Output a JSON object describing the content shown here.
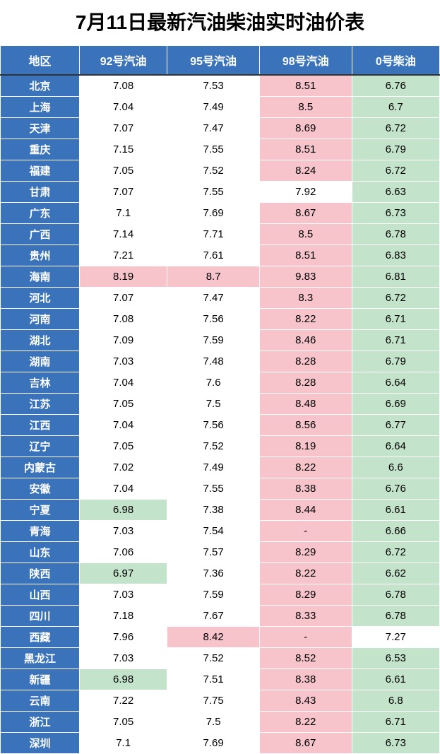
{
  "title": "7月11日最新汽油柴油实时油价表",
  "colors": {
    "header_bg": "#3a73b9",
    "region_bg": "#3a73b9",
    "white": "#ffffff",
    "pink": "#f7c4cb",
    "green": "#c3e4cb"
  },
  "columns": [
    {
      "key": "region",
      "label": "地区"
    },
    {
      "key": "g92",
      "label": "92号汽油"
    },
    {
      "key": "g95",
      "label": "95号汽油"
    },
    {
      "key": "g98",
      "label": "98号汽油"
    },
    {
      "key": "d0",
      "label": "0号柴油"
    }
  ],
  "rows": [
    {
      "region": "北京",
      "g92": {
        "v": "7.08",
        "bg": "white"
      },
      "g95": {
        "v": "7.53",
        "bg": "white"
      },
      "g98": {
        "v": "8.51",
        "bg": "pink"
      },
      "d0": {
        "v": "6.76",
        "bg": "green"
      }
    },
    {
      "region": "上海",
      "g92": {
        "v": "7.04",
        "bg": "white"
      },
      "g95": {
        "v": "7.49",
        "bg": "white"
      },
      "g98": {
        "v": "8.5",
        "bg": "pink"
      },
      "d0": {
        "v": "6.7",
        "bg": "green"
      }
    },
    {
      "region": "天津",
      "g92": {
        "v": "7.07",
        "bg": "white"
      },
      "g95": {
        "v": "7.47",
        "bg": "white"
      },
      "g98": {
        "v": "8.69",
        "bg": "pink"
      },
      "d0": {
        "v": "6.72",
        "bg": "green"
      }
    },
    {
      "region": "重庆",
      "g92": {
        "v": "7.15",
        "bg": "white"
      },
      "g95": {
        "v": "7.55",
        "bg": "white"
      },
      "g98": {
        "v": "8.51",
        "bg": "pink"
      },
      "d0": {
        "v": "6.79",
        "bg": "green"
      }
    },
    {
      "region": "福建",
      "g92": {
        "v": "7.05",
        "bg": "white"
      },
      "g95": {
        "v": "7.52",
        "bg": "white"
      },
      "g98": {
        "v": "8.24",
        "bg": "pink"
      },
      "d0": {
        "v": "6.72",
        "bg": "green"
      }
    },
    {
      "region": "甘肃",
      "g92": {
        "v": "7.07",
        "bg": "white"
      },
      "g95": {
        "v": "7.55",
        "bg": "white"
      },
      "g98": {
        "v": "7.92",
        "bg": "white"
      },
      "d0": {
        "v": "6.63",
        "bg": "green"
      }
    },
    {
      "region": "广东",
      "g92": {
        "v": "7.1",
        "bg": "white"
      },
      "g95": {
        "v": "7.69",
        "bg": "white"
      },
      "g98": {
        "v": "8.67",
        "bg": "pink"
      },
      "d0": {
        "v": "6.73",
        "bg": "green"
      }
    },
    {
      "region": "广西",
      "g92": {
        "v": "7.14",
        "bg": "white"
      },
      "g95": {
        "v": "7.71",
        "bg": "white"
      },
      "g98": {
        "v": "8.5",
        "bg": "pink"
      },
      "d0": {
        "v": "6.78",
        "bg": "green"
      }
    },
    {
      "region": "贵州",
      "g92": {
        "v": "7.21",
        "bg": "white"
      },
      "g95": {
        "v": "7.61",
        "bg": "white"
      },
      "g98": {
        "v": "8.51",
        "bg": "pink"
      },
      "d0": {
        "v": "6.83",
        "bg": "green"
      }
    },
    {
      "region": "海南",
      "g92": {
        "v": "8.19",
        "bg": "pink"
      },
      "g95": {
        "v": "8.7",
        "bg": "pink"
      },
      "g98": {
        "v": "9.83",
        "bg": "pink"
      },
      "d0": {
        "v": "6.81",
        "bg": "green"
      }
    },
    {
      "region": "河北",
      "g92": {
        "v": "7.07",
        "bg": "white"
      },
      "g95": {
        "v": "7.47",
        "bg": "white"
      },
      "g98": {
        "v": "8.3",
        "bg": "pink"
      },
      "d0": {
        "v": "6.72",
        "bg": "green"
      }
    },
    {
      "region": "河南",
      "g92": {
        "v": "7.08",
        "bg": "white"
      },
      "g95": {
        "v": "7.56",
        "bg": "white"
      },
      "g98": {
        "v": "8.22",
        "bg": "pink"
      },
      "d0": {
        "v": "6.71",
        "bg": "green"
      }
    },
    {
      "region": "湖北",
      "g92": {
        "v": "7.09",
        "bg": "white"
      },
      "g95": {
        "v": "7.59",
        "bg": "white"
      },
      "g98": {
        "v": "8.46",
        "bg": "pink"
      },
      "d0": {
        "v": "6.71",
        "bg": "green"
      }
    },
    {
      "region": "湖南",
      "g92": {
        "v": "7.03",
        "bg": "white"
      },
      "g95": {
        "v": "7.48",
        "bg": "white"
      },
      "g98": {
        "v": "8.28",
        "bg": "pink"
      },
      "d0": {
        "v": "6.79",
        "bg": "green"
      }
    },
    {
      "region": "吉林",
      "g92": {
        "v": "7.04",
        "bg": "white"
      },
      "g95": {
        "v": "7.6",
        "bg": "white"
      },
      "g98": {
        "v": "8.28",
        "bg": "pink"
      },
      "d0": {
        "v": "6.64",
        "bg": "green"
      }
    },
    {
      "region": "江苏",
      "g92": {
        "v": "7.05",
        "bg": "white"
      },
      "g95": {
        "v": "7.5",
        "bg": "white"
      },
      "g98": {
        "v": "8.48",
        "bg": "pink"
      },
      "d0": {
        "v": "6.69",
        "bg": "green"
      }
    },
    {
      "region": "江西",
      "g92": {
        "v": "7.04",
        "bg": "white"
      },
      "g95": {
        "v": "7.56",
        "bg": "white"
      },
      "g98": {
        "v": "8.56",
        "bg": "pink"
      },
      "d0": {
        "v": "6.77",
        "bg": "green"
      }
    },
    {
      "region": "辽宁",
      "g92": {
        "v": "7.05",
        "bg": "white"
      },
      "g95": {
        "v": "7.52",
        "bg": "white"
      },
      "g98": {
        "v": "8.19",
        "bg": "pink"
      },
      "d0": {
        "v": "6.64",
        "bg": "green"
      }
    },
    {
      "region": "内蒙古",
      "g92": {
        "v": "7.02",
        "bg": "white"
      },
      "g95": {
        "v": "7.49",
        "bg": "white"
      },
      "g98": {
        "v": "8.22",
        "bg": "pink"
      },
      "d0": {
        "v": "6.6",
        "bg": "green"
      }
    },
    {
      "region": "安徽",
      "g92": {
        "v": "7.04",
        "bg": "white"
      },
      "g95": {
        "v": "7.55",
        "bg": "white"
      },
      "g98": {
        "v": "8.38",
        "bg": "pink"
      },
      "d0": {
        "v": "6.76",
        "bg": "green"
      }
    },
    {
      "region": "宁夏",
      "g92": {
        "v": "6.98",
        "bg": "green"
      },
      "g95": {
        "v": "7.38",
        "bg": "white"
      },
      "g98": {
        "v": "8.44",
        "bg": "pink"
      },
      "d0": {
        "v": "6.61",
        "bg": "green"
      }
    },
    {
      "region": "青海",
      "g92": {
        "v": "7.03",
        "bg": "white"
      },
      "g95": {
        "v": "7.54",
        "bg": "white"
      },
      "g98": {
        "v": "-",
        "bg": "pink"
      },
      "d0": {
        "v": "6.66",
        "bg": "green"
      }
    },
    {
      "region": "山东",
      "g92": {
        "v": "7.06",
        "bg": "white"
      },
      "g95": {
        "v": "7.57",
        "bg": "white"
      },
      "g98": {
        "v": "8.29",
        "bg": "pink"
      },
      "d0": {
        "v": "6.72",
        "bg": "green"
      }
    },
    {
      "region": "陕西",
      "g92": {
        "v": "6.97",
        "bg": "green"
      },
      "g95": {
        "v": "7.36",
        "bg": "white"
      },
      "g98": {
        "v": "8.22",
        "bg": "pink"
      },
      "d0": {
        "v": "6.62",
        "bg": "green"
      }
    },
    {
      "region": "山西",
      "g92": {
        "v": "7.03",
        "bg": "white"
      },
      "g95": {
        "v": "7.59",
        "bg": "white"
      },
      "g98": {
        "v": "8.29",
        "bg": "pink"
      },
      "d0": {
        "v": "6.78",
        "bg": "green"
      }
    },
    {
      "region": "四川",
      "g92": {
        "v": "7.18",
        "bg": "white"
      },
      "g95": {
        "v": "7.67",
        "bg": "white"
      },
      "g98": {
        "v": "8.33",
        "bg": "pink"
      },
      "d0": {
        "v": "6.78",
        "bg": "green"
      }
    },
    {
      "region": "西藏",
      "g92": {
        "v": "7.96",
        "bg": "white"
      },
      "g95": {
        "v": "8.42",
        "bg": "pink"
      },
      "g98": {
        "v": "-",
        "bg": "pink"
      },
      "d0": {
        "v": "7.27",
        "bg": "white"
      }
    },
    {
      "region": "黑龙江",
      "g92": {
        "v": "7.03",
        "bg": "white"
      },
      "g95": {
        "v": "7.52",
        "bg": "white"
      },
      "g98": {
        "v": "8.52",
        "bg": "pink"
      },
      "d0": {
        "v": "6.53",
        "bg": "green"
      }
    },
    {
      "region": "新疆",
      "g92": {
        "v": "6.98",
        "bg": "green"
      },
      "g95": {
        "v": "7.51",
        "bg": "white"
      },
      "g98": {
        "v": "8.38",
        "bg": "pink"
      },
      "d0": {
        "v": "6.61",
        "bg": "green"
      }
    },
    {
      "region": "云南",
      "g92": {
        "v": "7.22",
        "bg": "white"
      },
      "g95": {
        "v": "7.75",
        "bg": "white"
      },
      "g98": {
        "v": "8.43",
        "bg": "pink"
      },
      "d0": {
        "v": "6.8",
        "bg": "green"
      }
    },
    {
      "region": "浙江",
      "g92": {
        "v": "7.05",
        "bg": "white"
      },
      "g95": {
        "v": "7.5",
        "bg": "white"
      },
      "g98": {
        "v": "8.22",
        "bg": "pink"
      },
      "d0": {
        "v": "6.71",
        "bg": "green"
      }
    },
    {
      "region": "深圳",
      "g92": {
        "v": "7.1",
        "bg": "white"
      },
      "g95": {
        "v": "7.69",
        "bg": "white"
      },
      "g98": {
        "v": "8.67",
        "bg": "pink"
      },
      "d0": {
        "v": "6.73",
        "bg": "green"
      }
    }
  ]
}
